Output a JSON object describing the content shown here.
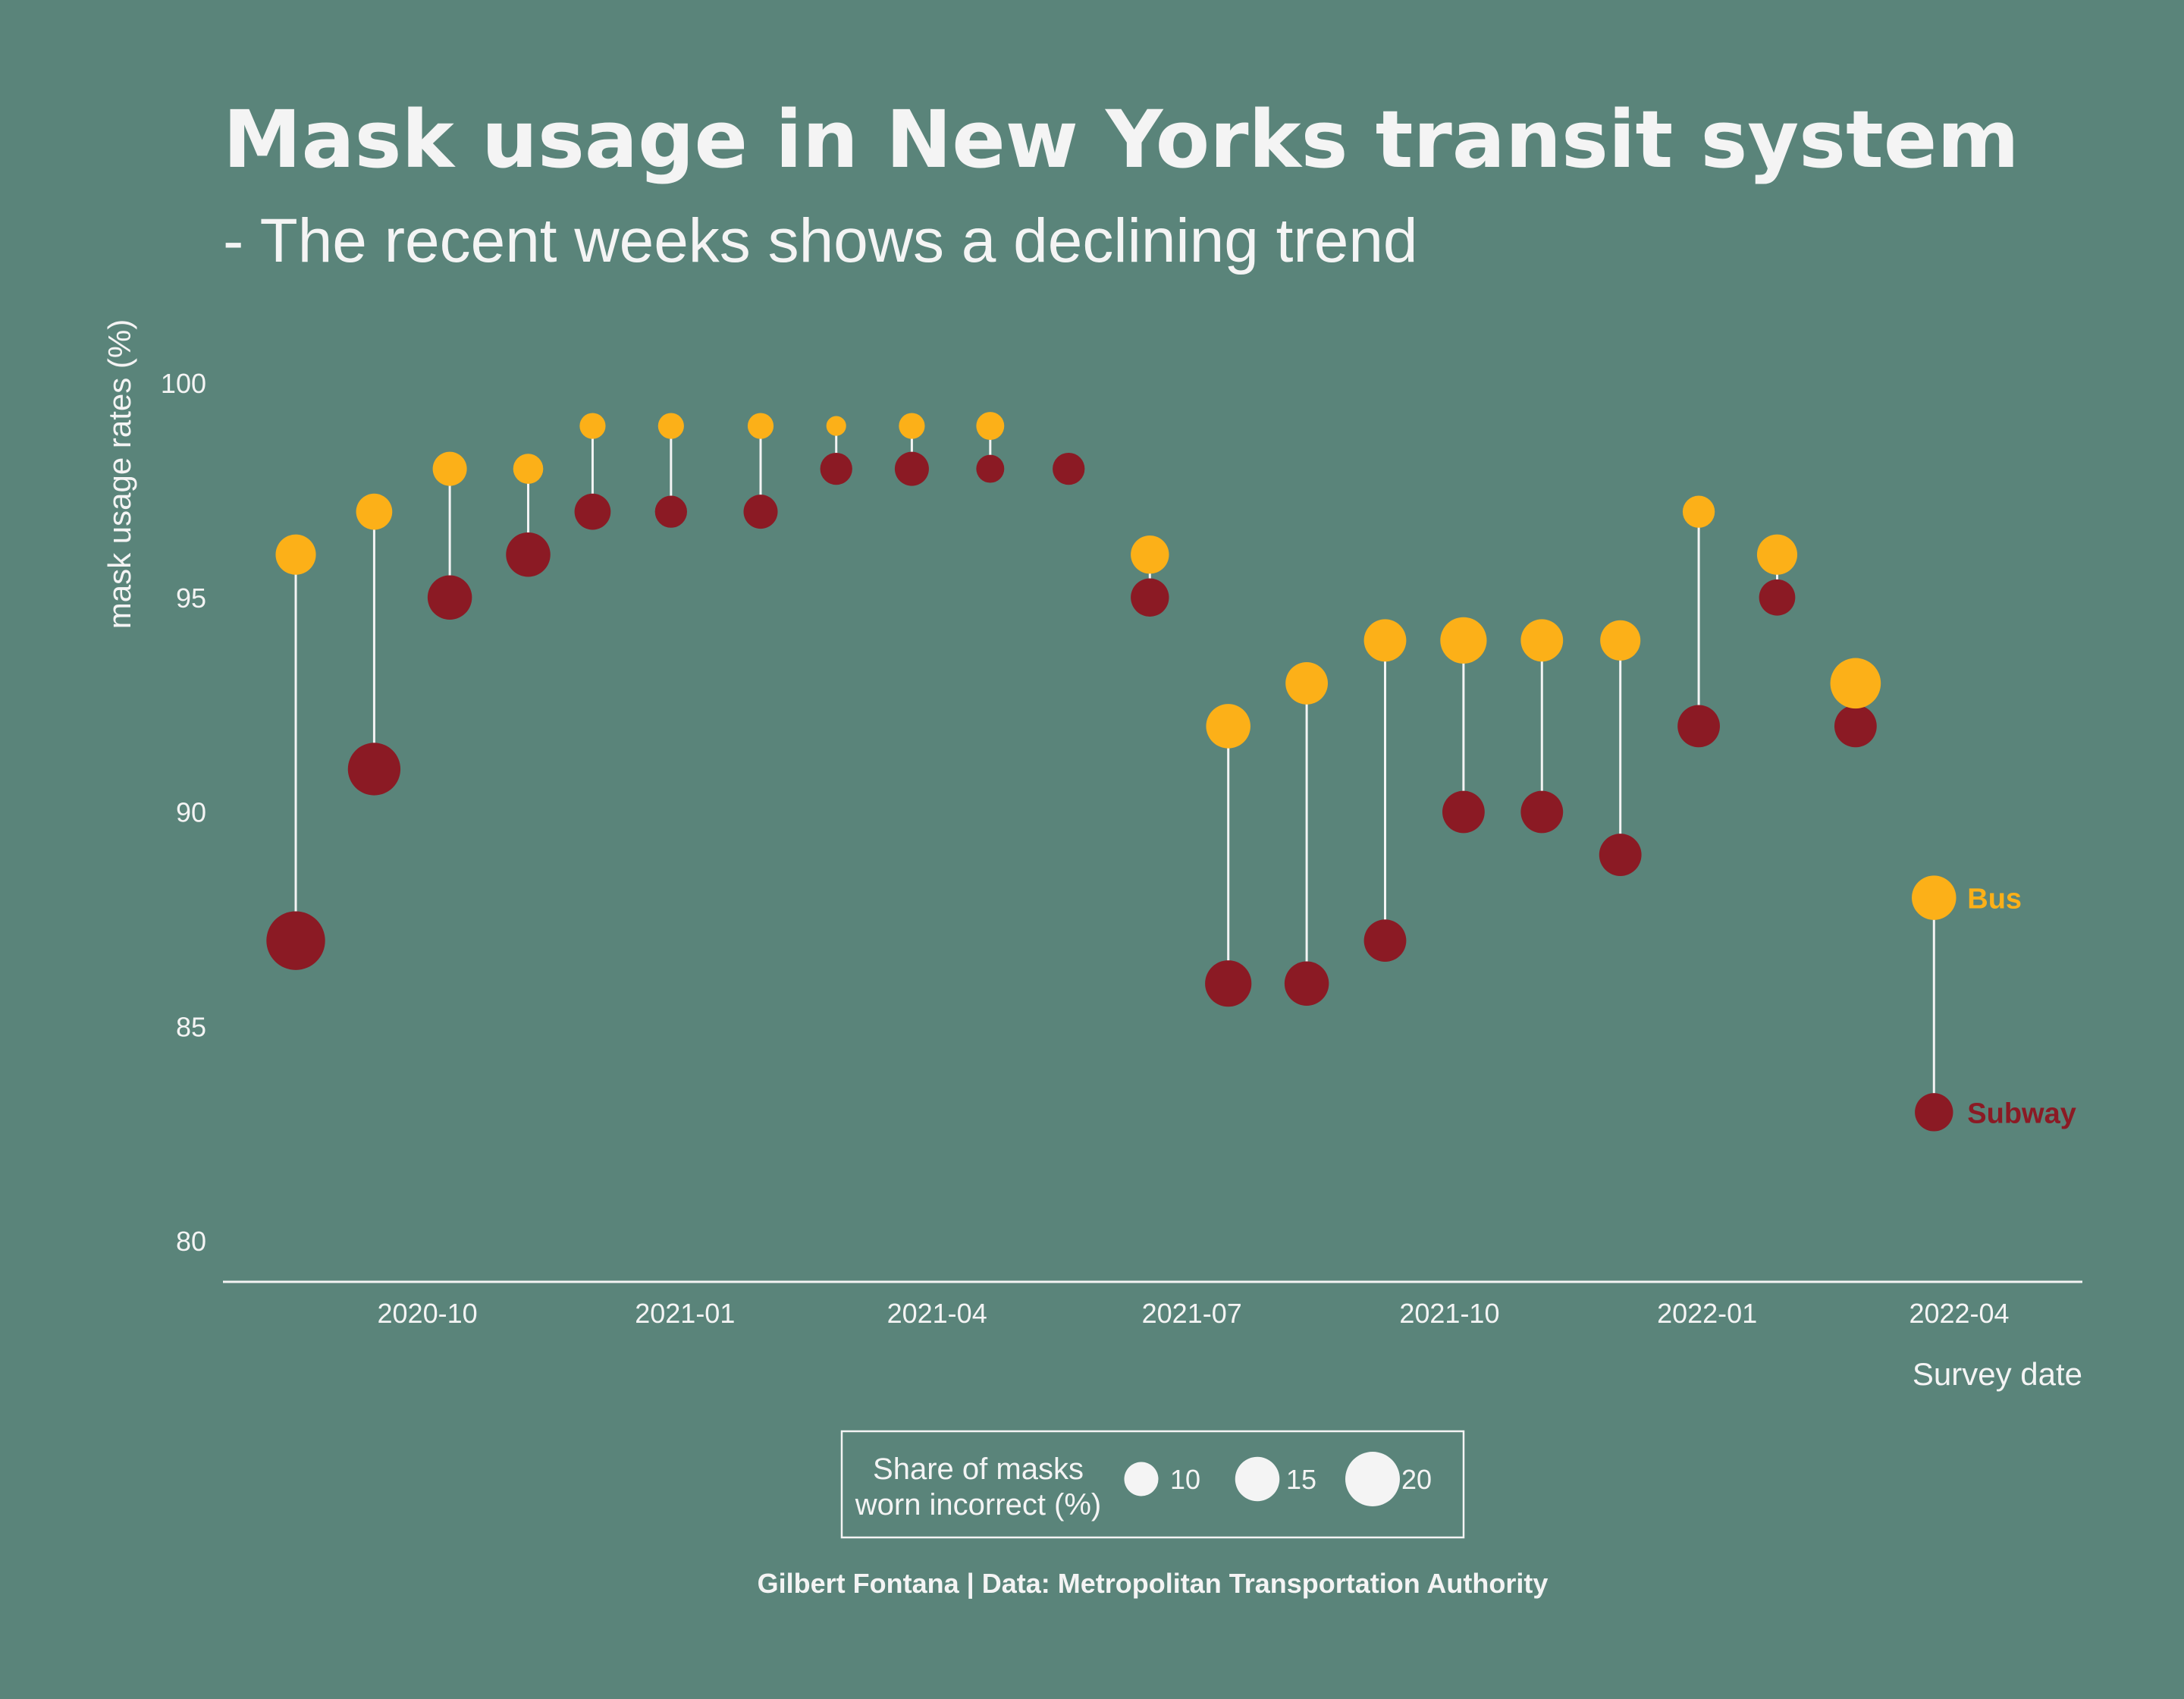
{
  "colors": {
    "background": "#5a847a",
    "bus": "#fcb018",
    "subway": "#8b1a24",
    "text": "#f4f4f4",
    "segment": "#f4f4f4",
    "legend_dot": "#f4f4f4"
  },
  "chart_data": {
    "type": "scatter",
    "title": "Mask usage in New Yorks transit system",
    "subtitle": "- The recent weeks shows a declining trend",
    "xlabel": "Survey date",
    "ylabel": "mask usage rates (%)",
    "ylim": [
      80,
      100
    ],
    "yticks": [
      "80",
      "85",
      "90",
      "95",
      "100"
    ],
    "xlim": [
      "2020-07-20",
      "2022-05-15"
    ],
    "xticks": [
      {
        "date": "2020-10-01",
        "label": "2020-10"
      },
      {
        "date": "2021-01-01",
        "label": "2021-01"
      },
      {
        "date": "2021-04-01",
        "label": "2021-04"
      },
      {
        "date": "2021-07-01",
        "label": "2021-07"
      },
      {
        "date": "2021-10-01",
        "label": "2021-10"
      },
      {
        "date": "2022-01-01",
        "label": "2022-01"
      },
      {
        "date": "2022-04-01",
        "label": "2022-04"
      }
    ],
    "size_legend": {
      "title": [
        "Share of masks",
        "worn incorrect (%)"
      ],
      "breaks": [
        10,
        15,
        20
      ]
    },
    "series": [
      {
        "name": "Bus",
        "points": [
          {
            "x": "2020-08-15",
            "y": 96,
            "size": 13
          },
          {
            "x": "2020-09-12",
            "y": 97,
            "size": 11
          },
          {
            "x": "2020-10-09",
            "y": 98,
            "size": 10
          },
          {
            "x": "2020-11-06",
            "y": 98,
            "size": 8
          },
          {
            "x": "2020-11-29",
            "y": 99,
            "size": 6
          },
          {
            "x": "2020-12-27",
            "y": 99,
            "size": 6
          },
          {
            "x": "2021-01-28",
            "y": 99,
            "size": 6
          },
          {
            "x": "2021-02-24",
            "y": 99,
            "size": 3
          },
          {
            "x": "2021-03-23",
            "y": 99,
            "size": 6
          },
          {
            "x": "2021-04-20",
            "y": 99,
            "size": 7
          },
          {
            "x": "2021-06-16",
            "y": 96,
            "size": 12
          },
          {
            "x": "2021-07-14",
            "y": 92,
            "size": 15
          },
          {
            "x": "2021-08-11",
            "y": 93,
            "size": 14
          },
          {
            "x": "2021-09-08",
            "y": 94,
            "size": 14
          },
          {
            "x": "2021-10-06",
            "y": 94,
            "size": 16
          },
          {
            "x": "2021-11-03",
            "y": 94,
            "size": 14
          },
          {
            "x": "2021-12-01",
            "y": 94,
            "size": 13
          },
          {
            "x": "2021-12-29",
            "y": 97,
            "size": 9
          },
          {
            "x": "2022-01-26",
            "y": 96,
            "size": 13
          },
          {
            "x": "2022-02-23",
            "y": 93,
            "size": 18
          },
          {
            "x": "2022-03-23",
            "y": 88,
            "size": 15
          }
        ]
      },
      {
        "name": "Subway",
        "points": [
          {
            "x": "2020-08-15",
            "y": 87,
            "size": 22
          },
          {
            "x": "2020-09-12",
            "y": 91,
            "size": 19
          },
          {
            "x": "2020-10-09",
            "y": 95,
            "size": 15
          },
          {
            "x": "2020-11-06",
            "y": 96,
            "size": 15
          },
          {
            "x": "2020-11-29",
            "y": 97,
            "size": 11
          },
          {
            "x": "2020-12-27",
            "y": 97,
            "size": 9
          },
          {
            "x": "2021-01-28",
            "y": 97,
            "size": 10
          },
          {
            "x": "2021-02-24",
            "y": 98,
            "size": 9
          },
          {
            "x": "2021-03-23",
            "y": 98,
            "size": 10
          },
          {
            "x": "2021-04-20",
            "y": 98,
            "size": 7
          },
          {
            "x": "2021-05-18",
            "y": 98,
            "size": 9
          },
          {
            "x": "2021-06-16",
            "y": 95,
            "size": 12
          },
          {
            "x": "2021-07-14",
            "y": 86,
            "size": 16
          },
          {
            "x": "2021-08-11",
            "y": 86,
            "size": 15
          },
          {
            "x": "2021-09-08",
            "y": 87,
            "size": 14
          },
          {
            "x": "2021-10-06",
            "y": 90,
            "size": 14
          },
          {
            "x": "2021-11-03",
            "y": 90,
            "size": 14
          },
          {
            "x": "2021-12-01",
            "y": 89,
            "size": 14
          },
          {
            "x": "2021-12-29",
            "y": 92,
            "size": 14
          },
          {
            "x": "2022-01-26",
            "y": 95,
            "size": 11
          },
          {
            "x": "2022-02-23",
            "y": 92,
            "size": 14
          },
          {
            "x": "2022-03-23",
            "y": 83,
            "size": 12
          }
        ]
      }
    ],
    "caption": "Gilbert Fontana | Data: Metropolitan Transportation Authority"
  }
}
